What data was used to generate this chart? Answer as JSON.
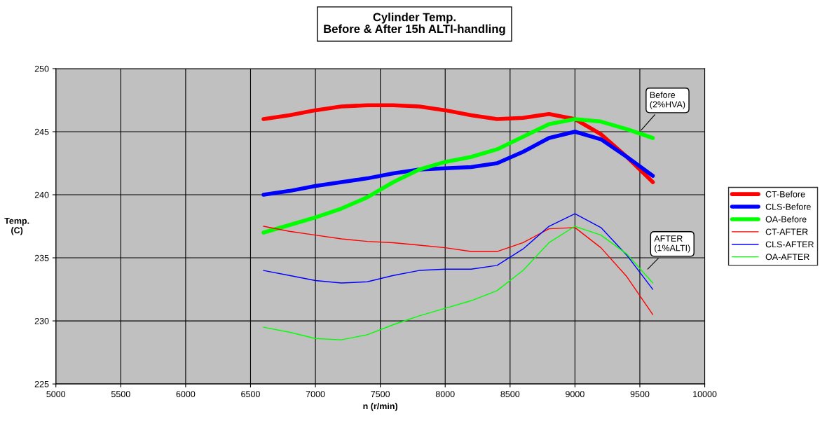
{
  "chart_data": {
    "type": "line",
    "title": "Cylinder Temp.\nBefore & After 15h ALTI-handling",
    "xlabel": "n (r/min)",
    "ylabel": "Temp. (C)",
    "x": [
      6600,
      6800,
      7000,
      7200,
      7400,
      7600,
      7800,
      8000,
      8200,
      8400,
      8600,
      8800,
      9000,
      9200,
      9400,
      9600
    ],
    "series": [
      {
        "name": "CT-Before",
        "color": "#ff0000",
        "values": [
          246.0,
          246.3,
          246.7,
          247.0,
          247.1,
          247.1,
          247.0,
          246.7,
          246.3,
          246.0,
          246.1,
          246.4,
          246.0,
          244.8,
          243.0,
          241.0
        ]
      },
      {
        "name": "CLS-Before",
        "color": "#0000ff",
        "values": [
          240.0,
          240.3,
          240.7,
          241.0,
          241.3,
          241.7,
          242.0,
          242.1,
          242.2,
          242.5,
          243.4,
          244.5,
          245.0,
          244.4,
          243.0,
          241.5
        ]
      },
      {
        "name": "OA-Before",
        "color": "#00ff00",
        "values": [
          237.0,
          237.6,
          238.2,
          238.9,
          239.8,
          241.0,
          242.0,
          242.6,
          243.0,
          243.6,
          244.6,
          245.6,
          246.0,
          245.8,
          245.2,
          244.5
        ]
      },
      {
        "name": "CT-AFTER",
        "color": "#ff0000",
        "values": [
          237.5,
          237.1,
          236.8,
          236.5,
          236.3,
          236.2,
          236.0,
          235.8,
          235.5,
          235.5,
          236.2,
          237.3,
          237.4,
          235.8,
          233.5,
          230.5
        ]
      },
      {
        "name": "CLS-AFTER",
        "color": "#0000ff",
        "values": [
          234.0,
          233.6,
          233.2,
          233.0,
          233.1,
          233.6,
          234.0,
          234.1,
          234.1,
          234.4,
          235.7,
          237.5,
          238.5,
          237.4,
          235.2,
          232.5
        ]
      },
      {
        "name": "OA-AFTER",
        "color": "#00ff00",
        "values": [
          229.5,
          229.1,
          228.6,
          228.5,
          228.9,
          229.7,
          230.4,
          231.0,
          231.6,
          232.4,
          234.0,
          236.2,
          237.5,
          236.8,
          235.3,
          233.0
        ]
      }
    ],
    "annotations": [
      {
        "text": "Before\n(2%HVA)",
        "x": 9500,
        "y": 245.0
      },
      {
        "text": "AFTER\n(1%ALTI)",
        "x": 9550,
        "y": 234.0
      }
    ],
    "xlim": [
      5000,
      10000
    ],
    "xticks": [
      5000,
      5500,
      6000,
      6500,
      7000,
      7500,
      8000,
      8500,
      9000,
      9500,
      10000
    ],
    "ylim": [
      225,
      250
    ],
    "yticks": [
      225,
      230,
      235,
      240,
      245,
      250
    ],
    "grid": true,
    "legend": "right",
    "marker": "none",
    "line_style": "solid"
  }
}
